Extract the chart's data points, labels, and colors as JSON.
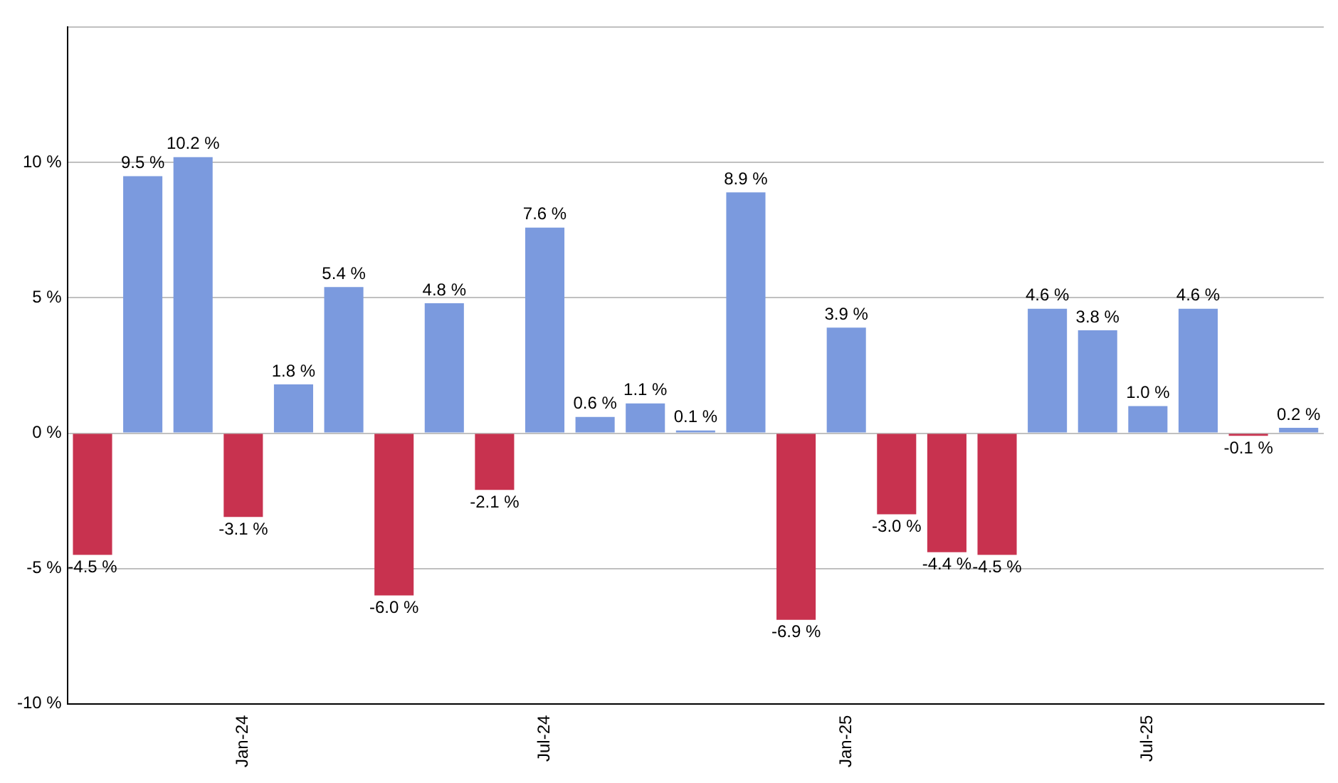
{
  "chart_data": {
    "type": "bar",
    "categories": [
      null,
      null,
      null,
      "Jan-24",
      null,
      null,
      null,
      null,
      null,
      "Jul-24",
      null,
      null,
      null,
      null,
      null,
      "Jan-25",
      null,
      null,
      null,
      null,
      null,
      "Jul-25",
      null,
      null,
      null
    ],
    "values": [
      -4.5,
      9.5,
      10.2,
      -3.1,
      1.8,
      5.4,
      -6.0,
      4.8,
      -2.1,
      7.6,
      0.6,
      1.1,
      0.1,
      8.9,
      -6.9,
      3.9,
      -3.0,
      -4.4,
      -4.5,
      4.6,
      3.8,
      1.0,
      4.6,
      -0.1,
      0.2
    ],
    "value_labels": [
      "-4.5 %",
      "9.5 %",
      "10.2 %",
      "-3.1 %",
      "1.8 %",
      "5.4 %",
      "-6.0 %",
      "4.8 %",
      "-2.1 %",
      "7.6 %",
      "0.6 %",
      "1.1 %",
      "0.1 %",
      "8.9 %",
      "-6.9 %",
      "3.9 %",
      "-3.0 %",
      "-4.4 %",
      "-4.5 %",
      "4.6 %",
      "3.8 %",
      "1.0 %",
      "4.6 %",
      "-0.1 %",
      "0.2 %"
    ],
    "colors": [
      "#c8324f",
      "#7b9ade",
      "#7b9ade",
      "#c8324f",
      "#7b9ade",
      "#7b9ade",
      "#c8324f",
      "#7b9ade",
      "#c8324f",
      "#7b9ade",
      "#7b9ade",
      "#7b9ade",
      "#7b9ade",
      "#7b9ade",
      "#c8324f",
      "#7b9ade",
      "#c8324f",
      "#c8324f",
      "#c8324f",
      "#7b9ade",
      "#7b9ade",
      "#7b9ade",
      "#7b9ade",
      "#c8324f",
      "#7b9ade"
    ],
    "ylim": [
      -10,
      15
    ],
    "yticks": [
      {
        "value": -10,
        "label": "-10 %"
      },
      {
        "value": -5,
        "label": "-5 %"
      },
      {
        "value": 0,
        "label": "0 %"
      },
      {
        "value": 5,
        "label": "5 %"
      },
      {
        "value": 10,
        "label": "10 %"
      },
      {
        "value": 15,
        "label": null
      }
    ],
    "grid": "y",
    "legend": false
  }
}
